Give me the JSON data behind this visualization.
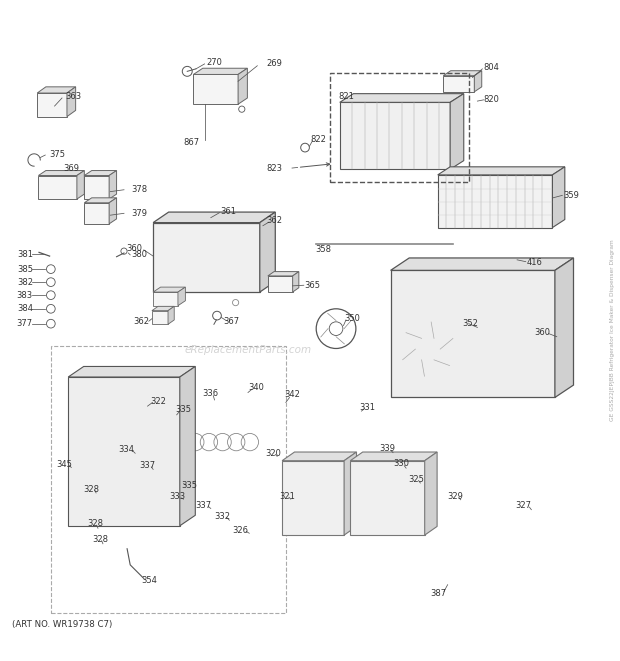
{
  "bg_color": "#ffffff",
  "line_color": "#555555",
  "text_color": "#333333",
  "art_no": "(ART NO. WR19738 C7)",
  "watermark": "eReplacementParts.com",
  "figw": 6.2,
  "figh": 6.61,
  "dpi": 100
}
